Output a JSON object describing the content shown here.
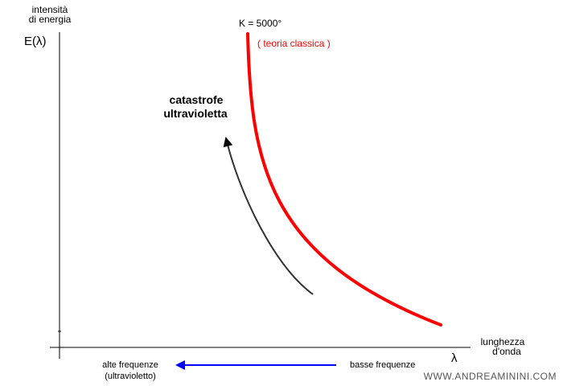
{
  "y_axis": {
    "title_line1": "intensità",
    "title_line2": "di energia",
    "symbol": "E(λ)"
  },
  "x_axis": {
    "title_line1": "lunghezza",
    "title_line2": "d'onda",
    "symbol": "λ"
  },
  "curve": {
    "temperature_label": "K = 5000°",
    "theory_label": "( teoria classica )",
    "color": "#ff0000"
  },
  "annotation": {
    "line1": "catastrofe",
    "line2": "ultravioletta",
    "arrow_color": "#333333"
  },
  "frequency_bar": {
    "left_line1": "alte frequenze",
    "left_line2": "(ultravioletto)",
    "right": "basse frequenze",
    "arrow_color": "#0000ff"
  },
  "watermark": "WWW.ANDREAMININI.COM"
}
